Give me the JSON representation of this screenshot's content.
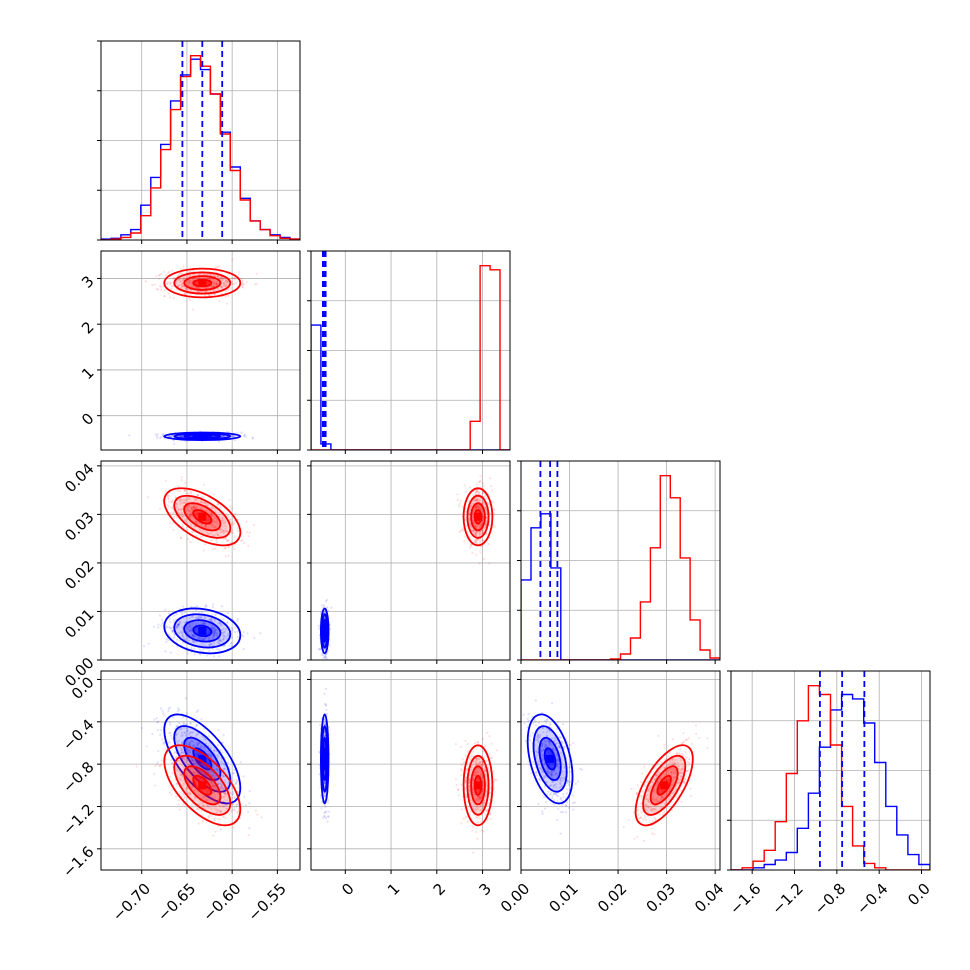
{
  "chart_data": {
    "type": "corner",
    "parameters": 4,
    "grid": true,
    "colors": {
      "blue": "#0000ff",
      "red": "#ff0000"
    },
    "axes": [
      {
        "range": [
          -0.745,
          -0.525
        ],
        "ticks": [
          -0.7,
          -0.65,
          -0.6,
          -0.55
        ],
        "tick_labels": [
          "−0.70",
          "−0.65",
          "−0.60",
          "−0.55"
        ]
      },
      {
        "range": [
          -0.75,
          3.6
        ],
        "ticks": [
          0,
          1,
          2,
          3
        ],
        "tick_labels": [
          "0",
          "1",
          "2",
          "3"
        ]
      },
      {
        "range": [
          0.0,
          0.041
        ],
        "ticks": [
          0.0,
          0.01,
          0.02,
          0.03,
          0.04
        ],
        "tick_labels": [
          "0.00",
          "0.01",
          "0.02",
          "0.03",
          "0.04"
        ]
      },
      {
        "range": [
          -1.8,
          0.08
        ],
        "ticks": [
          -1.6,
          -1.2,
          -0.8,
          -0.4,
          0.0
        ],
        "tick_labels": [
          "−1.6",
          "−1.2",
          "−0.8",
          "−0.4",
          "0.0"
        ]
      }
    ],
    "series": [
      {
        "color": "blue",
        "means": [
          -0.633,
          -0.45,
          0.006,
          -0.75
        ],
        "sds": [
          0.02,
          0.04,
          0.0022,
          0.2
        ],
        "quantiles": [
          [
            -0.655,
            -0.633,
            -0.611
          ],
          [
            -0.49,
            -0.46,
            -0.43
          ],
          [
            0.004,
            0.006,
            0.0075
          ],
          [
            -0.96,
            -0.75,
            -0.54
          ]
        ]
      },
      {
        "color": "red",
        "means": [
          -0.633,
          2.9,
          0.0295,
          -1.0
        ],
        "sds": [
          0.02,
          0.15,
          0.0028,
          0.18
        ],
        "quantiles": [
          [],
          [],
          [],
          []
        ]
      }
    ],
    "correlations": {
      "blue": {
        "0-2": -0.2,
        "0-3": -0.65,
        "2-3": -0.4
      },
      "red": {
        "0-2": -0.55,
        "0-3": -0.6,
        "2-3": 0.65
      }
    },
    "histograms": [
      {
        "blue": [
          1,
          2,
          6,
          12,
          40,
          72,
          110,
          160,
          190,
          208,
          196,
          168,
          124,
          84,
          48,
          22,
          12,
          6,
          3,
          1
        ],
        "red": [
          0,
          1,
          3,
          8,
          28,
          60,
          104,
          150,
          188,
          212,
          200,
          168,
          122,
          80,
          46,
          22,
          12,
          5,
          2,
          1
        ]
      },
      {
        "blue": [
          122,
          6,
          0,
          0,
          0,
          0,
          0,
          0,
          0,
          0,
          0,
          0,
          0,
          0,
          0,
          0,
          0,
          0,
          0,
          0
        ],
        "red": [
          0,
          0,
          0,
          0,
          0,
          0,
          0,
          0,
          0,
          0,
          0,
          0,
          0,
          0,
          0,
          0,
          28,
          180,
          176,
          0
        ]
      },
      {
        "blue": [
          80,
          132,
          146,
          92,
          0,
          0,
          0,
          0,
          0,
          0,
          0,
          0,
          0,
          0,
          0,
          0,
          0,
          0,
          0,
          0
        ],
        "red": [
          0,
          0,
          0,
          0,
          0,
          0,
          0,
          0,
          0,
          1,
          6,
          22,
          58,
          112,
          184,
          162,
          102,
          40,
          10,
          2
        ]
      },
      {
        "blue": [
          0,
          0,
          2,
          5,
          9,
          16,
          38,
          70,
          112,
          146,
          160,
          156,
          134,
          98,
          58,
          32,
          14,
          5
        ],
        "red": [
          0,
          2,
          8,
          18,
          44,
          88,
          136,
          168,
          160,
          114,
          58,
          22,
          6,
          2,
          0,
          0,
          0,
          0
        ]
      }
    ]
  }
}
